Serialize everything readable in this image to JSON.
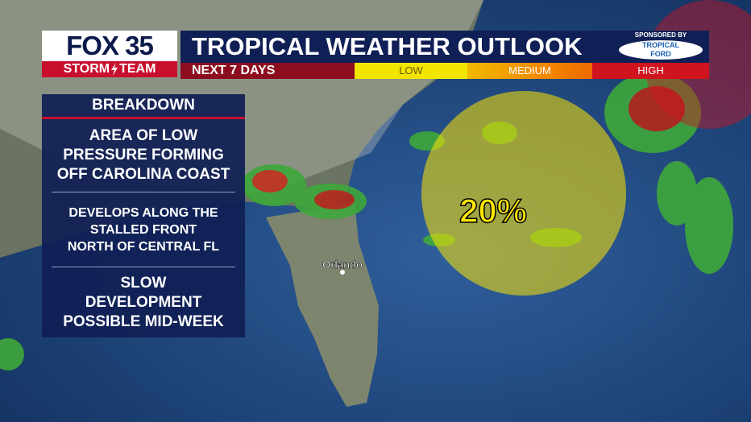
{
  "header": {
    "logo": {
      "brand": "FOX 35",
      "team_left": "STORM",
      "team_right": "TEAM"
    },
    "title": "TROPICAL WEATHER OUTLOOK",
    "subtitle": "NEXT 7 DAYS",
    "legend": [
      "LOW",
      "MEDIUM",
      "HIGH"
    ],
    "sponsor": {
      "label": "SPONSORED BY",
      "name_top": "TROPICAL",
      "name_bottom": "FORD"
    }
  },
  "breakdown": {
    "title": "BREAKDOWN",
    "items": [
      [
        "AREA OF LOW",
        "PRESSURE FORMING",
        "OFF CAROLINA COAST"
      ],
      [
        "DEVELOPS ALONG THE",
        "STALLED FRONT",
        "NORTH OF CENTRAL FL"
      ],
      [
        "SLOW",
        "DEVELOPMENT",
        "POSSIBLE MID-WEEK"
      ]
    ]
  },
  "map": {
    "city": "Orlando",
    "probability": "20%"
  }
}
